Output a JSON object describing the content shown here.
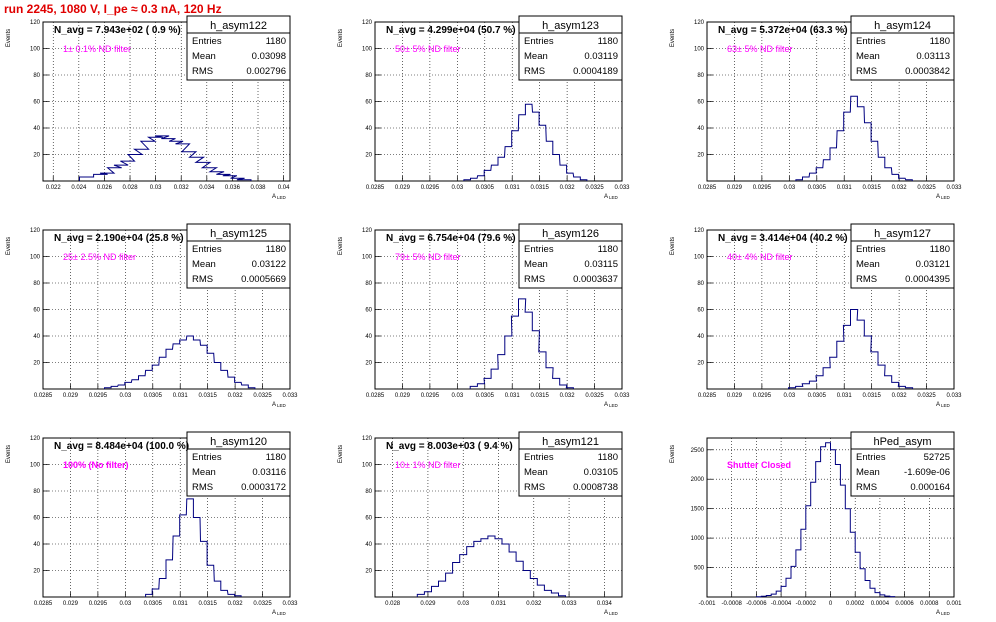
{
  "canvas_title": "run 2245,  1080 V, I_pe ≈ 0.3 nA, 120 Hz",
  "colors": {
    "histogram": "#000080",
    "canvas_title": "#e00000",
    "filter_label": "#ff00ff"
  },
  "stats_keys": {
    "entries": "Entries",
    "mean": "Mean",
    "rms": "RMS"
  },
  "chart_data": [
    {
      "type": "histogram",
      "name": "h_asym122",
      "navg": "N_avg = 7.943e+02 ( 0.9 %)",
      "filter": "1± 0.1% ND filter",
      "entries": "1180",
      "mean": "0.03098",
      "rms": "0.002796",
      "ylabel": "Events",
      "xlabel": "A_LED",
      "xlim": [
        0.0212,
        0.0405
      ],
      "ylim": [
        0,
        120
      ],
      "yticks": [
        0,
        20,
        40,
        60,
        80,
        100,
        120
      ],
      "ytick_labels": [
        "",
        "20",
        "40",
        "60",
        "80",
        "100",
        "120"
      ],
      "xticks": [
        0.022,
        0.024,
        0.026,
        0.028,
        0.03,
        0.032,
        0.034,
        0.036,
        0.038,
        0.04
      ],
      "xtick_labels": [
        "0.022",
        "0.024",
        "0.026",
        "0.028",
        "0.03",
        "0.032",
        "0.034",
        "0.036",
        "0.038",
        "0.04"
      ],
      "centers": [
        0.0246,
        0.0257,
        0.0262,
        0.0268,
        0.0273,
        0.0278,
        0.0284,
        0.0289,
        0.0294,
        0.03,
        0.0305,
        0.031,
        0.0316,
        0.0321,
        0.0326,
        0.0332,
        0.0337,
        0.0342,
        0.0348,
        0.0353,
        0.0358,
        0.0364,
        0.0369
      ],
      "values": [
        3,
        5,
        6,
        10,
        12,
        15,
        20,
        24,
        30,
        33,
        34,
        32,
        30,
        28,
        22,
        18,
        14,
        10,
        7,
        5,
        4,
        2,
        1
      ]
    },
    {
      "type": "histogram",
      "name": "h_asym123",
      "navg": "N_avg = 4.299e+04 (50.7 %)",
      "filter": "50± 5% ND filter",
      "entries": "1180",
      "mean": "0.03119",
      "rms": "0.0004189",
      "ylabel": "Events",
      "xlabel": "A_LED",
      "xlim": [
        0.0285,
        0.033
      ],
      "ylim": [
        0,
        120
      ],
      "yticks": [
        0,
        20,
        40,
        60,
        80,
        100,
        120
      ],
      "ytick_labels": [
        "",
        "20",
        "40",
        "60",
        "80",
        "100",
        "120"
      ],
      "xticks": [
        0.0285,
        0.029,
        0.0295,
        0.03,
        0.0305,
        0.031,
        0.0315,
        0.032,
        0.0325,
        0.033
      ],
      "xtick_labels": [
        "0.0285",
        "0.029",
        "0.0295",
        "0.03",
        "0.0305",
        "0.031",
        "0.0315",
        "0.032",
        "0.0325",
        "0.033"
      ],
      "centers": [
        0.03018,
        0.0303,
        0.03043,
        0.03055,
        0.03068,
        0.0308,
        0.03093,
        0.03105,
        0.03118,
        0.0313,
        0.03143,
        0.03155,
        0.03168,
        0.0318,
        0.03193,
        0.03205,
        0.03218,
        0.0323
      ],
      "values": [
        1,
        2,
        4,
        8,
        12,
        18,
        26,
        38,
        50,
        58,
        52,
        42,
        30,
        20,
        12,
        6,
        3,
        1
      ]
    },
    {
      "type": "histogram",
      "name": "h_asym124",
      "navg": "N_avg = 5.372e+04 (63.3 %)",
      "filter": "63± 5% ND filter",
      "entries": "1180",
      "mean": "0.03113",
      "rms": "0.0003842",
      "ylabel": "Events",
      "xlabel": "A_LED",
      "xlim": [
        0.0285,
        0.033
      ],
      "ylim": [
        0,
        120
      ],
      "yticks": [
        0,
        20,
        40,
        60,
        80,
        100,
        120
      ],
      "ytick_labels": [
        "",
        "20",
        "40",
        "60",
        "80",
        "100",
        "120"
      ],
      "xticks": [
        0.0285,
        0.029,
        0.0295,
        0.03,
        0.0305,
        0.031,
        0.0315,
        0.032,
        0.0325,
        0.033
      ],
      "xtick_labels": [
        "0.0285",
        "0.029",
        "0.0295",
        "0.03",
        "0.0305",
        "0.031",
        "0.0315",
        "0.032",
        "0.0325",
        "0.033"
      ],
      "centers": [
        0.03018,
        0.0303,
        0.03043,
        0.03055,
        0.03068,
        0.0308,
        0.03093,
        0.03105,
        0.03118,
        0.0313,
        0.03143,
        0.03155,
        0.03168,
        0.0318,
        0.03193,
        0.03205,
        0.03218
      ],
      "values": [
        1,
        3,
        6,
        10,
        16,
        25,
        38,
        52,
        64,
        56,
        44,
        30,
        18,
        10,
        5,
        2,
        1
      ]
    },
    {
      "type": "histogram",
      "name": "h_asym125",
      "navg": "N_avg = 2.190e+04 (25.8 %)",
      "filter": "25± 2.5% ND filter",
      "entries": "1180",
      "mean": "0.03122",
      "rms": "0.0005669",
      "ylabel": "Events",
      "xlabel": "A_LED",
      "xlim": [
        0.0285,
        0.033
      ],
      "ylim": [
        0,
        120
      ],
      "yticks": [
        0,
        20,
        40,
        60,
        80,
        100,
        120
      ],
      "ytick_labels": [
        "",
        "20",
        "40",
        "60",
        "80",
        "100",
        "120"
      ],
      "xticks": [
        0.0285,
        0.029,
        0.0295,
        0.03,
        0.0305,
        0.031,
        0.0315,
        0.032,
        0.0325,
        0.033
      ],
      "xtick_labels": [
        "0.0285",
        "0.029",
        "0.0295",
        "0.03",
        "0.0305",
        "0.031",
        "0.0315",
        "0.032",
        "0.0325",
        "0.033"
      ],
      "centers": [
        0.02968,
        0.0298,
        0.02993,
        0.03005,
        0.03018,
        0.0303,
        0.03043,
        0.03055,
        0.03068,
        0.0308,
        0.03093,
        0.03105,
        0.03118,
        0.0313,
        0.03143,
        0.03155,
        0.03168,
        0.0318,
        0.03193,
        0.03205,
        0.03218,
        0.0323
      ],
      "values": [
        1,
        2,
        3,
        5,
        7,
        10,
        14,
        18,
        24,
        30,
        34,
        37,
        40,
        37,
        33,
        27,
        20,
        14,
        9,
        5,
        3,
        1
      ]
    },
    {
      "type": "histogram",
      "name": "h_asym126",
      "navg": "N_avg = 6.754e+04 (79.6 %)",
      "filter": "79± 5% ND filter",
      "entries": "1180",
      "mean": "0.03115",
      "rms": "0.0003637",
      "ylabel": "Events",
      "xlabel": "A_LED",
      "xlim": [
        0.0285,
        0.033
      ],
      "ylim": [
        0,
        120
      ],
      "yticks": [
        0,
        20,
        40,
        60,
        80,
        100,
        120
      ],
      "ytick_labels": [
        "",
        "20",
        "40",
        "60",
        "80",
        "100",
        "120"
      ],
      "xticks": [
        0.0285,
        0.029,
        0.0295,
        0.03,
        0.0305,
        0.031,
        0.0315,
        0.032,
        0.0325,
        0.033
      ],
      "xtick_labels": [
        "0.0285",
        "0.029",
        "0.0295",
        "0.03",
        "0.0305",
        "0.031",
        "0.0315",
        "0.032",
        "0.0325",
        "0.033"
      ],
      "centers": [
        0.0303,
        0.03043,
        0.03055,
        0.03068,
        0.0308,
        0.03093,
        0.03105,
        0.03118,
        0.0313,
        0.03143,
        0.03155,
        0.03168,
        0.0318,
        0.03193,
        0.03205
      ],
      "values": [
        2,
        4,
        8,
        15,
        26,
        40,
        55,
        68,
        58,
        44,
        28,
        16,
        8,
        3,
        1
      ]
    },
    {
      "type": "histogram",
      "name": "h_asym127",
      "navg": "N_avg = 3.414e+04 (40.2 %)",
      "filter": "40± 4% ND filter",
      "entries": "1180",
      "mean": "0.03121",
      "rms": "0.0004395",
      "ylabel": "Events",
      "xlabel": "A_LED",
      "xlim": [
        0.0285,
        0.033
      ],
      "ylim": [
        0,
        120
      ],
      "yticks": [
        0,
        20,
        40,
        60,
        80,
        100,
        120
      ],
      "ytick_labels": [
        "",
        "20",
        "40",
        "60",
        "80",
        "100",
        "120"
      ],
      "xticks": [
        0.0285,
        0.029,
        0.0295,
        0.03,
        0.0305,
        0.031,
        0.0315,
        0.032,
        0.0325,
        0.033
      ],
      "xtick_labels": [
        "0.0285",
        "0.029",
        "0.0295",
        "0.03",
        "0.0305",
        "0.031",
        "0.0315",
        "0.032",
        "0.0325",
        "0.033"
      ],
      "centers": [
        0.03005,
        0.03018,
        0.0303,
        0.03043,
        0.03055,
        0.03068,
        0.0308,
        0.03093,
        0.03105,
        0.03118,
        0.0313,
        0.03143,
        0.03155,
        0.03168,
        0.0318,
        0.03193,
        0.03205,
        0.03218
      ],
      "values": [
        1,
        2,
        4,
        6,
        10,
        16,
        24,
        36,
        48,
        60,
        52,
        40,
        28,
        18,
        10,
        5,
        2,
        1
      ]
    },
    {
      "type": "histogram",
      "name": "h_asym120",
      "navg": "N_avg = 8.484e+04 (100.0 %)",
      "filter": "100% (No filter)",
      "filter_bold": true,
      "entries": "1180",
      "mean": "0.03116",
      "rms": "0.0003172",
      "ylabel": "Events",
      "xlabel": "A_LED",
      "xlim": [
        0.0285,
        0.033
      ],
      "ylim": [
        0,
        120
      ],
      "yticks": [
        0,
        20,
        40,
        60,
        80,
        100,
        120
      ],
      "ytick_labels": [
        "",
        "20",
        "40",
        "60",
        "80",
        "100",
        "120"
      ],
      "xticks": [
        0.0285,
        0.029,
        0.0295,
        0.03,
        0.0305,
        0.031,
        0.0315,
        0.032,
        0.0325,
        0.033
      ],
      "xtick_labels": [
        "0.0285",
        "0.029",
        "0.0295",
        "0.03",
        "0.0305",
        "0.031",
        "0.0315",
        "0.032",
        "0.0325",
        "0.033"
      ],
      "centers": [
        0.03043,
        0.03055,
        0.03068,
        0.0308,
        0.03093,
        0.03105,
        0.03118,
        0.0313,
        0.03143,
        0.03155,
        0.03168,
        0.0318,
        0.03193,
        0.03205
      ],
      "values": [
        2,
        6,
        14,
        28,
        46,
        62,
        74,
        60,
        42,
        24,
        12,
        5,
        2,
        1
      ]
    },
    {
      "type": "histogram",
      "name": "h_asym121",
      "navg": "N_avg = 8.003e+03 ( 9.4 %)",
      "filter": "10± 1% ND filter",
      "entries": "1180",
      "mean": "0.03105",
      "rms": "0.0008738",
      "ylabel": "Events",
      "xlabel": "A_LED",
      "xlim": [
        0.0275,
        0.0345
      ],
      "ylim": [
        0,
        120
      ],
      "yticks": [
        0,
        20,
        40,
        60,
        80,
        100,
        120
      ],
      "ytick_labels": [
        "",
        "20",
        "40",
        "60",
        "80",
        "100",
        "120"
      ],
      "xticks": [
        0.028,
        0.029,
        0.03,
        0.031,
        0.032,
        0.033,
        0.034
      ],
      "xtick_labels": [
        "0.028",
        "0.029",
        "0.03",
        "0.031",
        "0.032",
        "0.033",
        "0.034"
      ],
      "centers": [
        0.0288,
        0.029,
        0.0292,
        0.0294,
        0.0296,
        0.0298,
        0.03,
        0.0302,
        0.0304,
        0.0306,
        0.0308,
        0.031,
        0.0312,
        0.0314,
        0.0316,
        0.0318,
        0.032,
        0.0322,
        0.0324,
        0.0326,
        0.0328
      ],
      "values": [
        2,
        4,
        8,
        12,
        18,
        26,
        32,
        38,
        42,
        44,
        46,
        44,
        40,
        34,
        27,
        20,
        14,
        9,
        5,
        3,
        1
      ]
    },
    {
      "type": "histogram",
      "name": "hPed_asym",
      "navg": "",
      "filter": "Shutter Closed",
      "filter_bold": true,
      "entries": "52725",
      "mean": "-1.609e-06",
      "rms": "0.000164",
      "ylabel": "Events",
      "xlabel": "A_LED",
      "xlim": [
        -0.001,
        0.001
      ],
      "ylim": [
        0,
        2700
      ],
      "yticks": [
        0,
        500,
        1000,
        1500,
        2000,
        2500
      ],
      "ytick_labels": [
        "",
        "500",
        "1000",
        "1500",
        "2000",
        "2500"
      ],
      "xticks": [
        -0.001,
        -0.0008,
        -0.0006,
        -0.0004,
        -0.0002,
        0,
        0.0002,
        0.0004,
        0.0006,
        0.0008,
        0.001
      ],
      "xtick_labels": [
        "-0.001",
        "-0.0008",
        "-0.0006",
        "-0.0004",
        "-0.0002",
        "0",
        "0.0002",
        "0.0004",
        "0.0006",
        "0.0008",
        "0.001"
      ],
      "centers": [
        -0.00058,
        -0.00054,
        -0.0005,
        -0.00046,
        -0.00042,
        -0.00038,
        -0.00034,
        -0.0003,
        -0.00026,
        -0.00022,
        -0.00018,
        -0.00014,
        -0.0001,
        -6e-05,
        -2e-05,
        2e-05,
        6e-05,
        0.0001,
        0.00014,
        0.00018,
        0.00022,
        0.00026,
        0.0003,
        0.00034,
        0.00038,
        0.00042,
        0.00046,
        0.0005
      ],
      "values": [
        5,
        12,
        25,
        50,
        100,
        180,
        320,
        520,
        800,
        1150,
        1550,
        1950,
        2300,
        2550,
        2620,
        2500,
        2250,
        1900,
        1500,
        1100,
        760,
        480,
        280,
        150,
        75,
        35,
        15,
        6
      ]
    }
  ]
}
